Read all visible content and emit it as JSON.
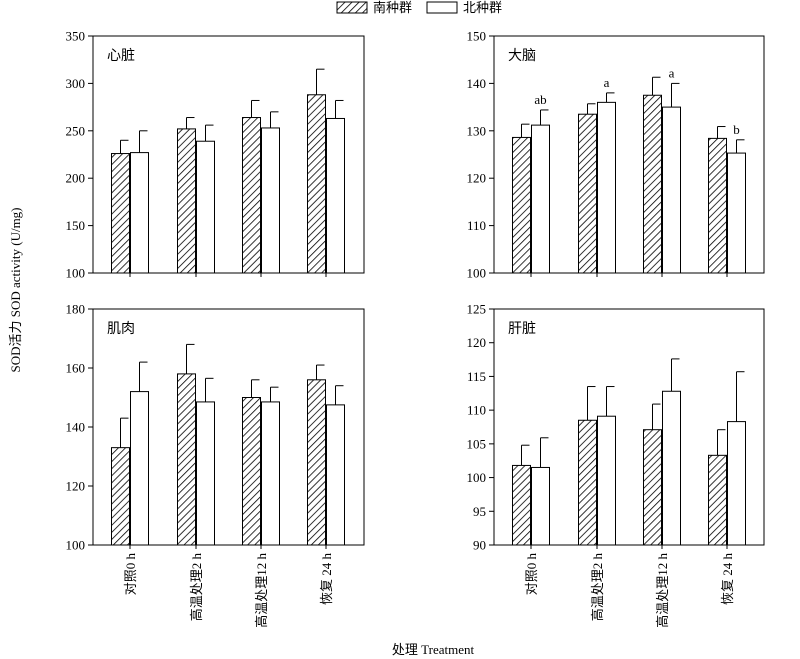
{
  "legend": [
    {
      "label": "南种群",
      "pattern": "hatch"
    },
    {
      "label": "北种群",
      "pattern": "empty"
    }
  ],
  "ylabel": "SOD活力 SOD activity (U/mg)",
  "xlabel": "处理 Treatment",
  "colors": {
    "ink": "#000000",
    "fill_north": "#ffffff"
  },
  "chart_data": [
    {
      "type": "bar",
      "title": "心脏",
      "categories": [
        "对照0 h",
        "高温处理2 h",
        "高温处理12 h",
        "恢复 24 h"
      ],
      "ylim": [
        100,
        350
      ],
      "yticks": [
        100,
        150,
        200,
        250,
        300,
        350
      ],
      "series": [
        {
          "name": "南种群",
          "values": [
            226,
            252,
            264,
            288
          ],
          "errors": [
            14,
            12,
            18,
            27
          ]
        },
        {
          "name": "北种群",
          "values": [
            227,
            239,
            253,
            263
          ],
          "errors": [
            23,
            17,
            17,
            19
          ]
        }
      ],
      "annotations": []
    },
    {
      "type": "bar",
      "title": "大脑",
      "categories": [
        "对照0 h",
        "高温处理2 h",
        "高温处理12 h",
        "恢复 24 h"
      ],
      "ylim": [
        100,
        150
      ],
      "yticks": [
        100,
        110,
        120,
        130,
        140,
        150
      ],
      "series": [
        {
          "name": "南种群",
          "values": [
            128.6,
            133.5,
            137.5,
            128.4
          ],
          "errors": [
            2.8,
            2.2,
            3.8,
            2.5
          ]
        },
        {
          "name": "北种群",
          "values": [
            131.2,
            136.0,
            135.0,
            125.3
          ],
          "errors": [
            3.2,
            2.0,
            5.0,
            2.8
          ]
        }
      ],
      "annotations": [
        "ab",
        "a",
        "a",
        "b"
      ]
    },
    {
      "type": "bar",
      "title": "肌肉",
      "categories": [
        "对照0 h",
        "高温处理2 h",
        "高温处理12 h",
        "恢复 24 h"
      ],
      "ylim": [
        100,
        180
      ],
      "yticks": [
        100,
        120,
        140,
        160,
        180
      ],
      "series": [
        {
          "name": "南种群",
          "values": [
            133,
            158,
            150,
            156
          ],
          "errors": [
            10,
            10,
            6,
            5
          ]
        },
        {
          "name": "北种群",
          "values": [
            152,
            148.5,
            148.5,
            147.5
          ],
          "errors": [
            10,
            8,
            5,
            6.5
          ]
        }
      ],
      "annotations": []
    },
    {
      "type": "bar",
      "title": "肝脏",
      "categories": [
        "对照0 h",
        "高温处理2 h",
        "高温处理12 h",
        "恢复 24 h"
      ],
      "ylim": [
        90,
        125
      ],
      "yticks": [
        90,
        95,
        100,
        105,
        110,
        115,
        120,
        125
      ],
      "series": [
        {
          "name": "南种群",
          "values": [
            101.8,
            108.5,
            107.1,
            103.3
          ],
          "errors": [
            3.0,
            5.0,
            3.8,
            3.8
          ]
        },
        {
          "name": "北种群",
          "values": [
            101.5,
            109.1,
            112.8,
            108.3
          ],
          "errors": [
            4.4,
            4.4,
            4.8,
            7.4
          ]
        }
      ],
      "annotations": []
    }
  ]
}
